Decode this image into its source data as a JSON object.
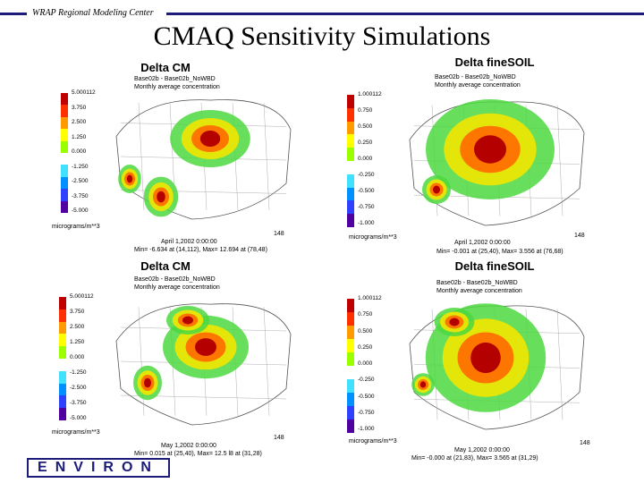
{
  "header": {
    "org": "WRAP Regional Modeling Center"
  },
  "title": "CMAQ Sensitivity Simulations",
  "logo": "ENVIRON",
  "colors": {
    "rule": "#1c1c78"
  },
  "panels": [
    {
      "title": "Delta CM",
      "subtitle1": "Base02b - Base02b_NoWBD",
      "subtitle2": "Monthly average concentration",
      "scale_top": "5.000112",
      "ticks": [
        "3.750",
        "2.500",
        "1.250",
        "0.000",
        "-1.250",
        "-2.500",
        "-3.750",
        "-5.000"
      ],
      "units": "micrograms/m**3",
      "x_end": "148",
      "date": "April 1,2002 0:00:00",
      "stats": "Min= -6.634 at (14,112), Max= 12.694 at (78,48)"
    },
    {
      "title": "Delta fineSOIL",
      "subtitle1": "Base02b - Base02b_NoWBD",
      "subtitle2": "Monthly average concentration",
      "scale_top": "1.000112",
      "ticks": [
        "0.750",
        "0.500",
        "0.250",
        "0.000",
        "-0.250",
        "-0.500",
        "-0.750",
        "-1.000"
      ],
      "units": "micrograms/m**3",
      "x_end": "148",
      "date": "April 1,2002 0:00:00",
      "stats": "Min= -0.001 at (25,40), Max= 3.556 at (76,68)"
    },
    {
      "title": "Delta CM",
      "subtitle1": "Base02b - Base02b_NoWBD",
      "subtitle2": "Monthly average concentration",
      "scale_top": "5.000112",
      "ticks": [
        "3.750",
        "2.500",
        "1.250",
        "0.000",
        "-1.250",
        "-2.500",
        "-3.750",
        "-5.000"
      ],
      "units": "micrograms/m**3",
      "x_end": "148",
      "date": "May 1,2002 0:00:00",
      "stats": "Min= 0.015 at (25,40), Max= 12.5 l8 at (31,28)"
    },
    {
      "title": "Delta fineSOIL",
      "subtitle1": "Base02b - Base02b_NoWBD",
      "subtitle2": "Monthly average concentration",
      "scale_top": "1.000112",
      "ticks": [
        "0.750",
        "0.500",
        "0.250",
        "0.000",
        "-0.250",
        "-0.500",
        "-0.750",
        "-1.000"
      ],
      "units": "micrograms/m**3",
      "x_end": "148",
      "date": "May 1,2002 0:00:00",
      "stats": "Min= -0.000 at (21,83), Max= 3.565 at (31,29)"
    }
  ]
}
